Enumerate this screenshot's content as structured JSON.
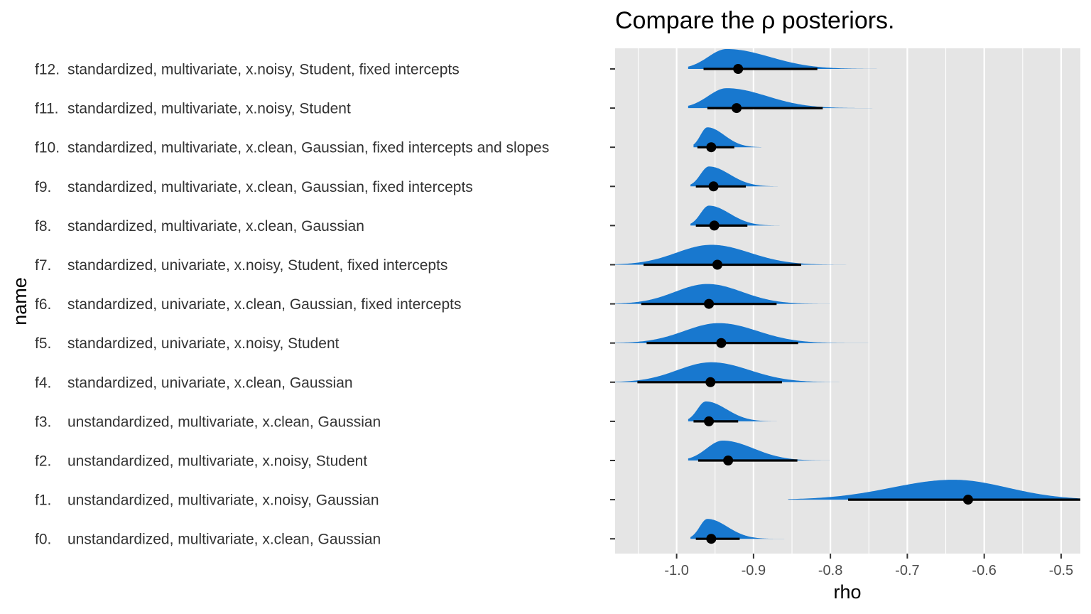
{
  "colors": {
    "panel": "#e5e5e5",
    "grid": "#ffffff",
    "density_fill": "#1878cf",
    "interval": "#000000",
    "point": "#000000",
    "tick": "#333333"
  },
  "chart_data": {
    "type": "ridgeline-density-interval",
    "title": "Compare the ρ posteriors.",
    "xlabel": "rho",
    "ylabel": "name",
    "xlim": [
      -1.08,
      -0.475
    ],
    "x_ticks": [
      -1.0,
      -0.9,
      -0.8,
      -0.7,
      -0.6,
      -0.5
    ],
    "x_tick_labels": [
      "-1.0",
      "-0.9",
      "-0.8",
      "-0.7",
      "-0.6",
      "-0.5"
    ],
    "grid": true,
    "legend": "none",
    "rows": [
      {
        "id": "f12.",
        "desc": "standardized, multivariate, x.noisy, Student, fixed intercepts",
        "mode": -0.935,
        "sd_left": 0.024,
        "sd_right": 0.056,
        "range": [
          -0.985,
          -0.63
        ],
        "point": -0.92,
        "interval": [
          -0.965,
          -0.817
        ]
      },
      {
        "id": "f11.",
        "desc": "standardized, multivariate, x.noisy, Student",
        "mode": -0.935,
        "sd_left": 0.024,
        "sd_right": 0.052,
        "range": [
          -0.985,
          -0.68
        ],
        "point": -0.922,
        "interval": [
          -0.96,
          -0.81
        ]
      },
      {
        "id": "f10.",
        "desc": "standardized, multivariate, x.clean, Gaussian, fixed intercepts and slopes",
        "mode": -0.96,
        "sd_left": 0.009,
        "sd_right": 0.022,
        "range": [
          -0.978,
          -0.89
        ],
        "point": -0.955,
        "interval": [
          -0.973,
          -0.925
        ]
      },
      {
        "id": "f9.",
        "desc": "standardized, multivariate, x.clean, Gaussian, fixed intercepts",
        "mode": -0.958,
        "sd_left": 0.011,
        "sd_right": 0.027,
        "range": [
          -0.982,
          -0.85
        ],
        "point": -0.952,
        "interval": [
          -0.975,
          -0.91
        ]
      },
      {
        "id": "f8.",
        "desc": "standardized, multivariate, x.clean, Gaussian",
        "mode": -0.958,
        "sd_left": 0.011,
        "sd_right": 0.027,
        "range": [
          -0.982,
          -0.85
        ],
        "point": -0.951,
        "interval": [
          -0.975,
          -0.908
        ]
      },
      {
        "id": "f7.",
        "desc": "standardized, univariate, x.noisy, Student, fixed intercepts",
        "mode": -0.955,
        "sd_left": 0.045,
        "sd_right": 0.05,
        "range": [
          -1.08,
          -0.75
        ],
        "point": -0.947,
        "interval": [
          -1.043,
          -0.838
        ]
      },
      {
        "id": "f6.",
        "desc": "standardized, univariate, x.clean, Gaussian, fixed intercepts",
        "mode": -0.96,
        "sd_left": 0.042,
        "sd_right": 0.045,
        "range": [
          -1.08,
          -0.8
        ],
        "point": -0.958,
        "interval": [
          -1.046,
          -0.87
        ]
      },
      {
        "id": "f5.",
        "desc": "standardized, univariate, x.noisy, Student",
        "mode": -0.945,
        "sd_left": 0.045,
        "sd_right": 0.05,
        "range": [
          -1.08,
          -0.75
        ],
        "point": -0.942,
        "interval": [
          -1.039,
          -0.842
        ]
      },
      {
        "id": "f4.",
        "desc": "standardized, univariate, x.clean, Gaussian",
        "mode": -0.955,
        "sd_left": 0.044,
        "sd_right": 0.05,
        "range": [
          -1.08,
          -0.77
        ],
        "point": -0.956,
        "interval": [
          -1.051,
          -0.863
        ]
      },
      {
        "id": "f3.",
        "desc": "unstandardized, multivariate, x.clean, Gaussian",
        "mode": -0.962,
        "sd_left": 0.011,
        "sd_right": 0.027,
        "range": [
          -0.985,
          -0.86
        ],
        "point": -0.958,
        "interval": [
          -0.978,
          -0.92
        ]
      },
      {
        "id": "f2.",
        "desc": "unstandardized, multivariate, x.noisy, Student",
        "mode": -0.94,
        "sd_left": 0.021,
        "sd_right": 0.04,
        "range": [
          -0.985,
          -0.74
        ],
        "point": -0.933,
        "interval": [
          -0.972,
          -0.843
        ]
      },
      {
        "id": "f1.",
        "desc": "unstandardized, multivariate, x.noisy, Gaussian",
        "mode": -0.64,
        "sd_left": 0.08,
        "sd_right": 0.07,
        "range": [
          -0.855,
          -0.475
        ],
        "point": -0.621,
        "interval": [
          -0.777,
          -0.475
        ]
      },
      {
        "id": "f0.",
        "desc": "unstandardized, multivariate, x.clean, Gaussian",
        "mode": -0.96,
        "sd_left": 0.01,
        "sd_right": 0.026,
        "range": [
          -0.982,
          -0.86
        ],
        "point": -0.955,
        "interval": [
          -0.975,
          -0.918
        ]
      }
    ]
  }
}
